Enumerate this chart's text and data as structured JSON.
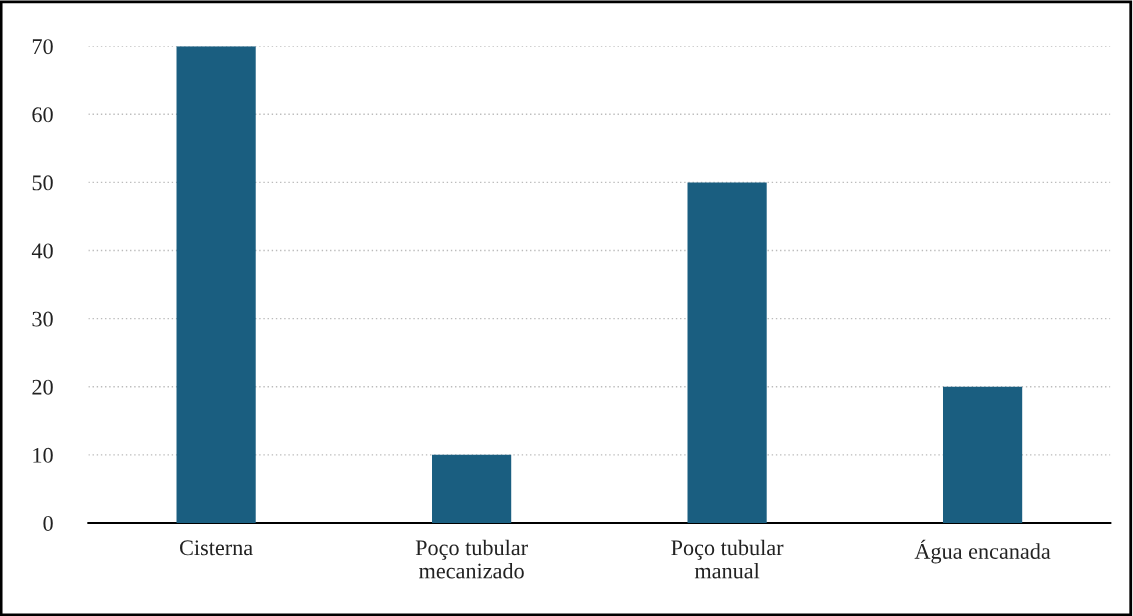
{
  "chart_data": {
    "type": "bar",
    "categories": [
      "Cisterna",
      "Poço tubular\nmecanizado",
      "Poço tubular\nmanual",
      "Água encanada"
    ],
    "values": [
      70,
      10,
      50,
      20
    ],
    "color": "#1a5e80",
    "ylim": [
      0,
      70
    ],
    "yticks": [
      0,
      10,
      20,
      30,
      40,
      50,
      60,
      70
    ],
    "grid": "y"
  }
}
